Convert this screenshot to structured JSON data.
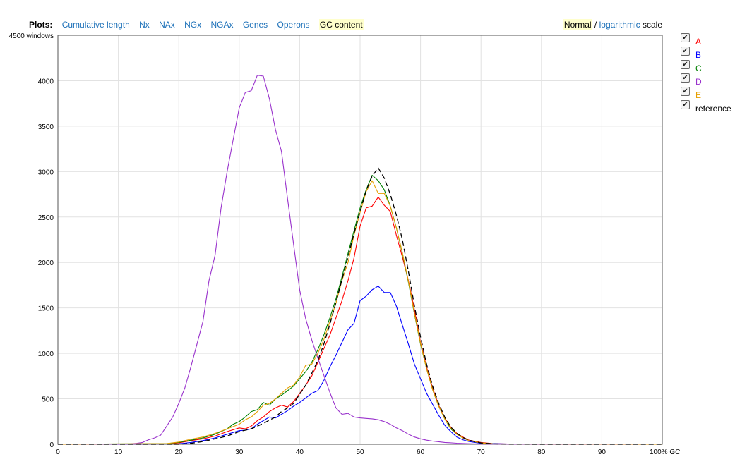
{
  "topbar": {
    "plots_label": "Plots:",
    "tabs": [
      "Cumulative length",
      "Nx",
      "NAx",
      "NGx",
      "NGAx",
      "Genes",
      "Operons",
      "GC content"
    ],
    "active_tab": "GC content"
  },
  "scale": {
    "normal": "Normal",
    "separator": " / ",
    "logarithmic": "logarithmic",
    "suffix": " scale"
  },
  "legend": [
    {
      "name": "A",
      "color": "#ff0000",
      "checked": true
    },
    {
      "name": "B",
      "color": "#0000ff",
      "checked": true
    },
    {
      "name": "C",
      "color": "#008000",
      "checked": true
    },
    {
      "name": "D",
      "color": "#9932cc",
      "checked": true
    },
    {
      "name": "E",
      "color": "#e69f00",
      "checked": true
    },
    {
      "name": "reference",
      "color": "#000000",
      "checked": true
    }
  ],
  "chart_data": {
    "type": "line",
    "ylabel": "windows",
    "xlabel": "% GC",
    "xlim": [
      0,
      100
    ],
    "ylim": [
      0,
      4500
    ],
    "xticks": [
      0,
      10,
      20,
      30,
      40,
      50,
      60,
      70,
      80,
      90,
      100
    ],
    "yticks": [
      0,
      500,
      1000,
      1500,
      2000,
      2500,
      3000,
      3500,
      4000,
      4500
    ],
    "grid": true,
    "series": [
      {
        "name": "A",
        "color": "#ff0000",
        "dashed": false,
        "points": [
          [
            0,
            0
          ],
          [
            18,
            5
          ],
          [
            20,
            15
          ],
          [
            22,
            40
          ],
          [
            24,
            60
          ],
          [
            26,
            90
          ],
          [
            28,
            140
          ],
          [
            30,
            180
          ],
          [
            31,
            170
          ],
          [
            32,
            200
          ],
          [
            33,
            260
          ],
          [
            34,
            300
          ],
          [
            35,
            360
          ],
          [
            36,
            400
          ],
          [
            37,
            430
          ],
          [
            38,
            410
          ],
          [
            39,
            470
          ],
          [
            40,
            560
          ],
          [
            41,
            650
          ],
          [
            42,
            750
          ],
          [
            43,
            900
          ],
          [
            44,
            1050
          ],
          [
            45,
            1200
          ],
          [
            46,
            1390
          ],
          [
            47,
            1580
          ],
          [
            48,
            1800
          ],
          [
            49,
            2050
          ],
          [
            50,
            2400
          ],
          [
            51,
            2600
          ],
          [
            52,
            2620
          ],
          [
            53,
            2720
          ],
          [
            54,
            2630
          ],
          [
            55,
            2560
          ],
          [
            56,
            2300
          ],
          [
            57,
            2060
          ],
          [
            58,
            1800
          ],
          [
            59,
            1480
          ],
          [
            60,
            1120
          ],
          [
            61,
            850
          ],
          [
            62,
            620
          ],
          [
            63,
            430
          ],
          [
            64,
            290
          ],
          [
            65,
            190
          ],
          [
            66,
            120
          ],
          [
            67,
            80
          ],
          [
            68,
            45
          ],
          [
            70,
            20
          ],
          [
            72,
            8
          ],
          [
            75,
            2
          ],
          [
            100,
            0
          ]
        ]
      },
      {
        "name": "B",
        "color": "#0000ff",
        "dashed": false,
        "points": [
          [
            0,
            0
          ],
          [
            20,
            5
          ],
          [
            22,
            20
          ],
          [
            24,
            40
          ],
          [
            26,
            70
          ],
          [
            28,
            110
          ],
          [
            30,
            150
          ],
          [
            31,
            155
          ],
          [
            32,
            170
          ],
          [
            33,
            220
          ],
          [
            34,
            260
          ],
          [
            35,
            300
          ],
          [
            36,
            290
          ],
          [
            37,
            330
          ],
          [
            38,
            370
          ],
          [
            39,
            420
          ],
          [
            40,
            460
          ],
          [
            41,
            510
          ],
          [
            42,
            560
          ],
          [
            43,
            590
          ],
          [
            44,
            700
          ],
          [
            45,
            850
          ],
          [
            46,
            980
          ],
          [
            47,
            1120
          ],
          [
            48,
            1260
          ],
          [
            49,
            1330
          ],
          [
            50,
            1580
          ],
          [
            51,
            1630
          ],
          [
            52,
            1700
          ],
          [
            53,
            1740
          ],
          [
            54,
            1670
          ],
          [
            55,
            1670
          ],
          [
            56,
            1520
          ],
          [
            57,
            1310
          ],
          [
            58,
            1100
          ],
          [
            59,
            880
          ],
          [
            60,
            720
          ],
          [
            61,
            560
          ],
          [
            62,
            440
          ],
          [
            63,
            320
          ],
          [
            64,
            210
          ],
          [
            65,
            140
          ],
          [
            66,
            80
          ],
          [
            67,
            50
          ],
          [
            68,
            30
          ],
          [
            70,
            10
          ],
          [
            75,
            2
          ],
          [
            100,
            0
          ]
        ]
      },
      {
        "name": "C",
        "color": "#008000",
        "dashed": false,
        "points": [
          [
            0,
            0
          ],
          [
            18,
            8
          ],
          [
            20,
            20
          ],
          [
            22,
            45
          ],
          [
            24,
            70
          ],
          [
            26,
            110
          ],
          [
            28,
            170
          ],
          [
            29,
            220
          ],
          [
            30,
            250
          ],
          [
            31,
            300
          ],
          [
            32,
            360
          ],
          [
            33,
            380
          ],
          [
            34,
            460
          ],
          [
            35,
            430
          ],
          [
            36,
            500
          ],
          [
            37,
            540
          ],
          [
            38,
            590
          ],
          [
            39,
            640
          ],
          [
            40,
            720
          ],
          [
            41,
            800
          ],
          [
            42,
            900
          ],
          [
            43,
            1040
          ],
          [
            44,
            1200
          ],
          [
            45,
            1390
          ],
          [
            46,
            1600
          ],
          [
            47,
            1840
          ],
          [
            48,
            2100
          ],
          [
            49,
            2350
          ],
          [
            50,
            2600
          ],
          [
            51,
            2800
          ],
          [
            52,
            2960
          ],
          [
            53,
            2900
          ],
          [
            54,
            2800
          ],
          [
            55,
            2620
          ],
          [
            56,
            2380
          ],
          [
            57,
            2100
          ],
          [
            58,
            1780
          ],
          [
            59,
            1430
          ],
          [
            60,
            1100
          ],
          [
            61,
            830
          ],
          [
            62,
            600
          ],
          [
            63,
            420
          ],
          [
            64,
            280
          ],
          [
            65,
            170
          ],
          [
            66,
            110
          ],
          [
            67,
            70
          ],
          [
            68,
            40
          ],
          [
            70,
            15
          ],
          [
            72,
            5
          ],
          [
            100,
            0
          ]
        ]
      },
      {
        "name": "D",
        "color": "#9932cc",
        "dashed": false,
        "points": [
          [
            0,
            0
          ],
          [
            10,
            2
          ],
          [
            12,
            5
          ],
          [
            13,
            10
          ],
          [
            14,
            20
          ],
          [
            15,
            50
          ],
          [
            16,
            70
          ],
          [
            17,
            100
          ],
          [
            18,
            200
          ],
          [
            19,
            300
          ],
          [
            20,
            450
          ],
          [
            21,
            620
          ],
          [
            22,
            850
          ],
          [
            23,
            1100
          ],
          [
            24,
            1350
          ],
          [
            25,
            1800
          ],
          [
            26,
            2080
          ],
          [
            27,
            2600
          ],
          [
            28,
            3000
          ],
          [
            29,
            3350
          ],
          [
            30,
            3700
          ],
          [
            31,
            3870
          ],
          [
            32,
            3890
          ],
          [
            33,
            4060
          ],
          [
            34,
            4050
          ],
          [
            35,
            3800
          ],
          [
            36,
            3460
          ],
          [
            37,
            3220
          ],
          [
            38,
            2700
          ],
          [
            39,
            2200
          ],
          [
            40,
            1700
          ],
          [
            41,
            1380
          ],
          [
            42,
            1150
          ],
          [
            43,
            950
          ],
          [
            44,
            760
          ],
          [
            45,
            570
          ],
          [
            46,
            400
          ],
          [
            47,
            330
          ],
          [
            48,
            340
          ],
          [
            49,
            300
          ],
          [
            50,
            290
          ],
          [
            51,
            285
          ],
          [
            52,
            280
          ],
          [
            53,
            270
          ],
          [
            54,
            250
          ],
          [
            55,
            220
          ],
          [
            56,
            180
          ],
          [
            57,
            150
          ],
          [
            58,
            110
          ],
          [
            59,
            80
          ],
          [
            60,
            60
          ],
          [
            61,
            45
          ],
          [
            62,
            35
          ],
          [
            63,
            28
          ],
          [
            64,
            20
          ],
          [
            66,
            12
          ],
          [
            68,
            6
          ],
          [
            70,
            2
          ],
          [
            100,
            0
          ]
        ]
      },
      {
        "name": "E",
        "color": "#e69f00",
        "dashed": false,
        "points": [
          [
            0,
            0
          ],
          [
            18,
            8
          ],
          [
            20,
            25
          ],
          [
            22,
            55
          ],
          [
            24,
            80
          ],
          [
            26,
            120
          ],
          [
            28,
            170
          ],
          [
            30,
            220
          ],
          [
            31,
            270
          ],
          [
            32,
            300
          ],
          [
            33,
            360
          ],
          [
            34,
            430
          ],
          [
            35,
            450
          ],
          [
            36,
            500
          ],
          [
            37,
            560
          ],
          [
            38,
            620
          ],
          [
            39,
            650
          ],
          [
            40,
            740
          ],
          [
            41,
            870
          ],
          [
            42,
            880
          ],
          [
            43,
            1000
          ],
          [
            44,
            1150
          ],
          [
            45,
            1350
          ],
          [
            46,
            1550
          ],
          [
            47,
            1800
          ],
          [
            48,
            2000
          ],
          [
            49,
            2300
          ],
          [
            50,
            2550
          ],
          [
            51,
            2780
          ],
          [
            52,
            2900
          ],
          [
            53,
            2760
          ],
          [
            54,
            2760
          ],
          [
            55,
            2620
          ],
          [
            56,
            2380
          ],
          [
            57,
            2110
          ],
          [
            58,
            1790
          ],
          [
            59,
            1440
          ],
          [
            60,
            1110
          ],
          [
            61,
            830
          ],
          [
            62,
            600
          ],
          [
            63,
            420
          ],
          [
            64,
            280
          ],
          [
            65,
            180
          ],
          [
            66,
            110
          ],
          [
            67,
            70
          ],
          [
            68,
            40
          ],
          [
            70,
            15
          ],
          [
            72,
            5
          ],
          [
            100,
            0
          ]
        ]
      },
      {
        "name": "reference",
        "color": "#000000",
        "dashed": true,
        "points": [
          [
            0,
            0
          ],
          [
            20,
            0
          ],
          [
            22,
            10
          ],
          [
            24,
            30
          ],
          [
            26,
            60
          ],
          [
            28,
            90
          ],
          [
            30,
            140
          ],
          [
            32,
            170
          ],
          [
            34,
            230
          ],
          [
            36,
            300
          ],
          [
            37,
            360
          ],
          [
            38,
            400
          ],
          [
            39,
            450
          ],
          [
            40,
            550
          ],
          [
            41,
            650
          ],
          [
            42,
            780
          ],
          [
            43,
            920
          ],
          [
            44,
            1100
          ],
          [
            45,
            1320
          ],
          [
            46,
            1560
          ],
          [
            47,
            1810
          ],
          [
            48,
            2060
          ],
          [
            49,
            2320
          ],
          [
            50,
            2560
          ],
          [
            51,
            2790
          ],
          [
            52,
            2950
          ],
          [
            53,
            3040
          ],
          [
            54,
            2930
          ],
          [
            55,
            2750
          ],
          [
            56,
            2520
          ],
          [
            57,
            2250
          ],
          [
            58,
            1900
          ],
          [
            59,
            1520
          ],
          [
            60,
            1180
          ],
          [
            61,
            880
          ],
          [
            62,
            640
          ],
          [
            63,
            450
          ],
          [
            64,
            300
          ],
          [
            65,
            190
          ],
          [
            66,
            120
          ],
          [
            67,
            75
          ],
          [
            68,
            45
          ],
          [
            70,
            15
          ],
          [
            72,
            5
          ],
          [
            75,
            1
          ],
          [
            100,
            0
          ]
        ]
      }
    ]
  }
}
